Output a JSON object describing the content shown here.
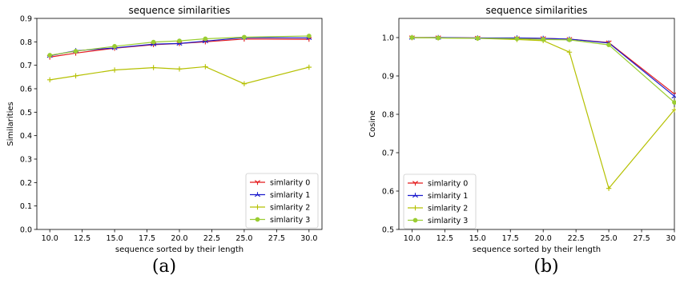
{
  "chart_data": [
    {
      "type": "line",
      "title": "sequence similarities",
      "xlabel": "sequence sorted by their length",
      "ylabel": "Similarities",
      "xlim": [
        9.0,
        31.0
      ],
      "ylim": [
        0.0,
        0.9
      ],
      "xticks": [
        "10.0",
        "12.5",
        "15.0",
        "17.5",
        "20.0",
        "22.5",
        "25.0",
        "27.5",
        "30.0"
      ],
      "yticks": [
        "0.0",
        "0.1",
        "0.2",
        "0.3",
        "0.4",
        "0.5",
        "0.6",
        "0.7",
        "0.8",
        "0.9"
      ],
      "x": [
        10,
        12,
        15,
        18,
        20,
        22,
        25,
        30
      ],
      "series": [
        {
          "name": "simlarity 0",
          "color": "#e41a1c",
          "marker": "tri-down",
          "values": [
            0.735,
            0.752,
            0.773,
            0.788,
            0.793,
            0.8,
            0.812,
            0.811
          ]
        },
        {
          "name": "simlarity 1",
          "color": "#1a1acd",
          "marker": "tri-up",
          "values": [
            0.741,
            0.762,
            0.774,
            0.79,
            0.793,
            0.803,
            0.818,
            0.817
          ]
        },
        {
          "name": "simlarity 2",
          "color": "#b5c000",
          "marker": "plus",
          "values": [
            0.638,
            0.655,
            0.68,
            0.69,
            0.684,
            0.694,
            0.621,
            0.692
          ]
        },
        {
          "name": "simlarity 3",
          "color": "#9acd32",
          "marker": "circle",
          "values": [
            0.743,
            0.76,
            0.781,
            0.799,
            0.804,
            0.813,
            0.82,
            0.825
          ]
        }
      ],
      "legend_position": "lower-right",
      "grid": false
    },
    {
      "type": "line",
      "title": "sequence similarities",
      "xlabel": "sequence sorted by their length",
      "ylabel": "Cosine",
      "xlim": [
        9.0,
        30.0
      ],
      "ylim": [
        0.5,
        1.05
      ],
      "xticks": [
        "10.0",
        "12.5",
        "15.0",
        "17.5",
        "20.0",
        "22.5",
        "25.0",
        "27.5",
        "30.0"
      ],
      "yticks": [
        "0.5",
        "0.6",
        "0.7",
        "0.8",
        "0.9",
        "1.0"
      ],
      "x": [
        10,
        12,
        15,
        18,
        20,
        22,
        25,
        30
      ],
      "series": [
        {
          "name": "simlarity 0",
          "color": "#e41a1c",
          "marker": "tri-down",
          "values": [
            1.0,
            1.0,
            0.999,
            0.998,
            0.998,
            0.996,
            0.987,
            0.853
          ]
        },
        {
          "name": "simlarity 1",
          "color": "#1a1acd",
          "marker": "tri-up",
          "values": [
            1.0,
            1.0,
            0.999,
            0.999,
            0.998,
            0.996,
            0.986,
            0.847
          ]
        },
        {
          "name": "simlarity 2",
          "color": "#b5c000",
          "marker": "plus",
          "values": [
            1.0,
            0.999,
            0.998,
            0.995,
            0.992,
            0.962,
            0.607,
            0.812
          ]
        },
        {
          "name": "simlarity 3",
          "color": "#9acd32",
          "marker": "circle",
          "values": [
            1.0,
            0.999,
            0.998,
            0.997,
            0.995,
            0.994,
            0.981,
            0.831
          ]
        }
      ],
      "legend_position": "lower-left",
      "grid": false
    }
  ],
  "captions": [
    "(a)",
    "(b)"
  ]
}
